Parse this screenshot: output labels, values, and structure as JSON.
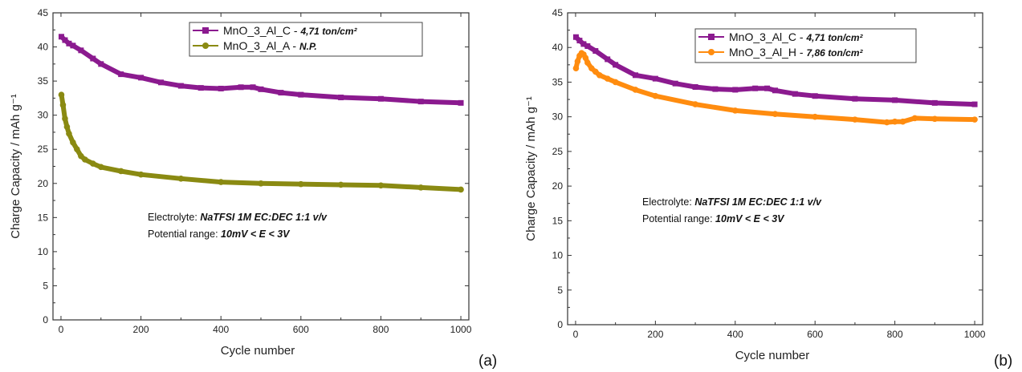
{
  "colors": {
    "MnO_3_Al_C": "#8b1a8f",
    "MnO_3_Al_A": "#8a8a12",
    "MnO_3_Al_H": "#ff8c0f"
  },
  "chart_data": [
    {
      "type": "line",
      "panel_label": "(a)",
      "xlabel": "Cycle number",
      "ylabel": "Charge Capacity / mAh g⁻¹",
      "xlim": [
        -20,
        1020
      ],
      "ylim": [
        0,
        45
      ],
      "xticks": [
        0,
        200,
        400,
        600,
        800,
        1000
      ],
      "yticks": [
        0,
        5,
        10,
        15,
        20,
        25,
        30,
        35,
        40,
        45
      ],
      "grid": false,
      "legend_position": "top-right",
      "series": [
        {
          "name": "MnO_3_Al_C",
          "name_suffix": " - ",
          "name_emph": "4,71 ton/cm²",
          "color": "#8b1a8f",
          "marker": "square",
          "x": [
            1,
            10,
            20,
            30,
            50,
            80,
            100,
            150,
            200,
            250,
            300,
            350,
            400,
            450,
            480,
            500,
            550,
            600,
            700,
            800,
            900,
            1000
          ],
          "y": [
            41.5,
            41.0,
            40.5,
            40.2,
            39.5,
            38.3,
            37.5,
            36.0,
            35.5,
            34.8,
            34.3,
            34.0,
            33.9,
            34.1,
            34.1,
            33.8,
            33.3,
            33.0,
            32.6,
            32.4,
            32.0,
            31.8
          ]
        },
        {
          "name": "MnO_3_Al_A",
          "name_suffix": " - ",
          "name_emph": "N.P.",
          "color": "#8a8a12",
          "marker": "circle",
          "x": [
            1,
            5,
            10,
            15,
            20,
            30,
            40,
            50,
            60,
            80,
            100,
            150,
            200,
            300,
            400,
            500,
            600,
            700,
            800,
            900,
            1000
          ],
          "y": [
            33.0,
            31.5,
            29.5,
            28.3,
            27.3,
            26.0,
            25.0,
            24.0,
            23.5,
            22.9,
            22.4,
            21.8,
            21.3,
            20.7,
            20.2,
            20.0,
            19.9,
            19.8,
            19.7,
            19.4,
            19.1
          ]
        }
      ],
      "annotations": [
        {
          "label": "Electrolyte:",
          "value": "NaTFSI 1M EC:DEC 1:1 v/v"
        },
        {
          "label": "Potential range:",
          "value": "10mV < E < 3V"
        }
      ]
    },
    {
      "type": "line",
      "panel_label": "(b)",
      "xlabel": "Cycle number",
      "ylabel": "Charge Capacity / mAh g⁻¹",
      "xlim": [
        -20,
        1020
      ],
      "ylim": [
        0,
        45
      ],
      "xticks": [
        0,
        200,
        400,
        600,
        800,
        1000
      ],
      "yticks": [
        0,
        5,
        10,
        15,
        20,
        25,
        30,
        35,
        40,
        45
      ],
      "grid": false,
      "legend_position": "top-right",
      "series": [
        {
          "name": "MnO_3_Al_C",
          "name_suffix": " - ",
          "name_emph": "4,71 ton/cm²",
          "color": "#8b1a8f",
          "marker": "square",
          "x": [
            1,
            10,
            20,
            30,
            50,
            80,
            100,
            150,
            200,
            250,
            300,
            350,
            400,
            450,
            480,
            500,
            550,
            600,
            700,
            800,
            900,
            1000
          ],
          "y": [
            41.5,
            41.0,
            40.5,
            40.2,
            39.5,
            38.3,
            37.5,
            36.0,
            35.5,
            34.8,
            34.3,
            34.0,
            33.9,
            34.1,
            34.1,
            33.8,
            33.3,
            33.0,
            32.6,
            32.4,
            32.0,
            31.8
          ]
        },
        {
          "name": "MnO_3_Al_H",
          "name_suffix": " - ",
          "name_emph": "7,86 ton/cm²",
          "color": "#ff8c0f",
          "marker": "circle",
          "x": [
            1,
            5,
            10,
            15,
            20,
            25,
            30,
            40,
            50,
            60,
            80,
            100,
            150,
            200,
            300,
            400,
            500,
            600,
            700,
            780,
            800,
            820,
            850,
            900,
            1000
          ],
          "y": [
            37.0,
            38.0,
            38.8,
            39.2,
            39.0,
            38.5,
            37.8,
            37.0,
            36.5,
            36.0,
            35.5,
            35.0,
            33.9,
            33.0,
            31.8,
            30.9,
            30.4,
            30.0,
            29.6,
            29.2,
            29.3,
            29.3,
            29.8,
            29.7,
            29.6
          ]
        }
      ],
      "annotations": [
        {
          "label": "Electrolyte:",
          "value": "NaTFSI 1M EC:DEC 1:1 v/v"
        },
        {
          "label": "Potential range:",
          "value": "10mV < E < 3V"
        }
      ]
    }
  ]
}
